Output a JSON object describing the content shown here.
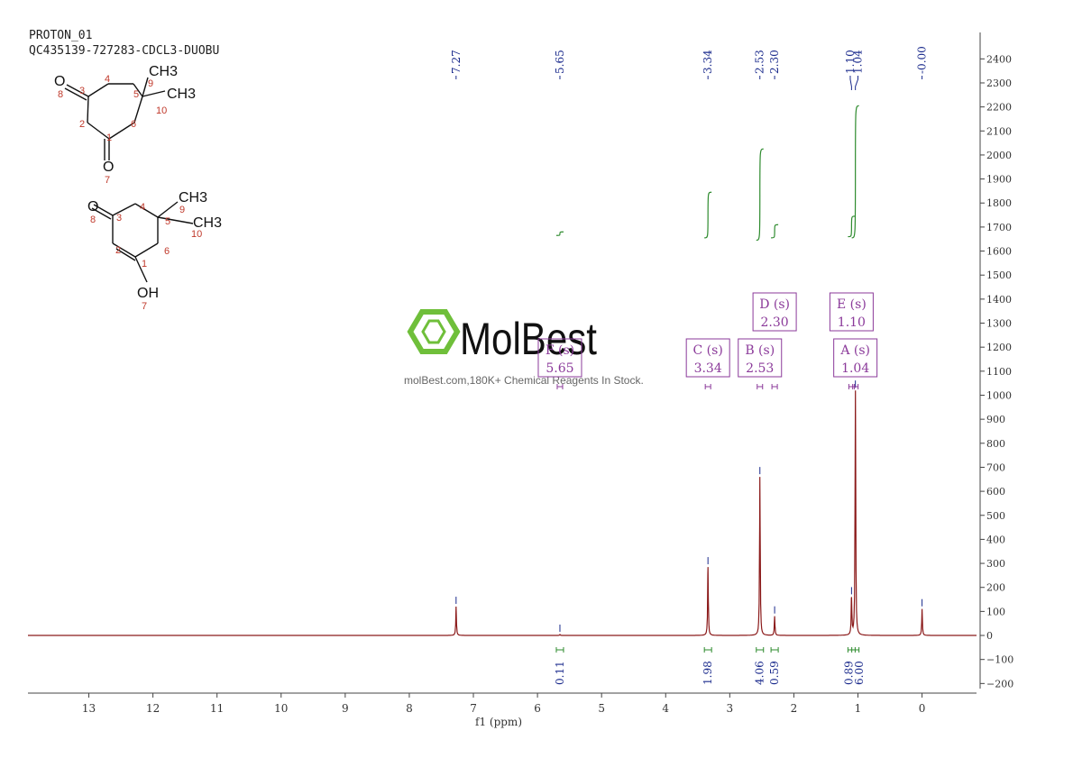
{
  "header": {
    "experiment": "PROTON_01",
    "sample": "QC435139-727283-CDCL3-DUOBU"
  },
  "colors": {
    "spectrum": "#8b1a1a",
    "peak_label": "#1a2a8c",
    "integral": "#2e8b2e",
    "multiplet_box": "#8b3a9a",
    "watermark": "#6fbf3a",
    "axis": "#444444"
  },
  "watermark": {
    "brand": "MolBest",
    "tagline": "molBest.com,180K+ Chemical Reagents In Stock."
  },
  "structures": [
    {
      "atoms": [
        {
          "label": "O",
          "number": "8"
        },
        {
          "label": "3"
        },
        {
          "label": "4"
        },
        {
          "label": "5"
        },
        {
          "label": "9"
        },
        {
          "label": "10"
        },
        {
          "label": "2"
        },
        {
          "label": "6"
        },
        {
          "label": "1"
        },
        {
          "label": "O",
          "number": "7"
        }
      ],
      "groups": [
        "CH3",
        "CH3"
      ]
    },
    {
      "atoms": [
        {
          "label": "O",
          "number": "8"
        },
        {
          "label": "3"
        },
        {
          "label": "4"
        },
        {
          "label": "5"
        },
        {
          "label": "9"
        },
        {
          "label": "10"
        },
        {
          "label": "2"
        },
        {
          "label": "6"
        },
        {
          "label": "1"
        },
        {
          "label": "OH",
          "number": "7"
        }
      ],
      "groups": [
        "CH3",
        "CH3"
      ]
    }
  ],
  "chart_data": {
    "type": "line",
    "xlabel": "f1 (ppm)",
    "xlim": [
      13.95,
      -0.85
    ],
    "ylim": [
      -240,
      2510
    ],
    "x_ticks": [
      13,
      12,
      11,
      10,
      9,
      8,
      7,
      6,
      5,
      4,
      3,
      2,
      1,
      0
    ],
    "y_ticks": [
      -200,
      -100,
      0,
      100,
      200,
      300,
      400,
      500,
      600,
      700,
      800,
      900,
      1000,
      1100,
      1200,
      1300,
      1400,
      1500,
      1600,
      1700,
      1800,
      1900,
      2000,
      2100,
      2200,
      2300,
      2400
    ],
    "peak_labels": [
      "7.27",
      "5.65",
      "3.34",
      "2.53",
      "2.30",
      "1.10",
      "1.04",
      "-0.00"
    ],
    "peaks": [
      {
        "ppm": 7.27,
        "height": 120
      },
      {
        "ppm": 5.65,
        "height": 4
      },
      {
        "ppm": 3.34,
        "height": 285
      },
      {
        "ppm": 2.53,
        "height": 660
      },
      {
        "ppm": 2.3,
        "height": 80
      },
      {
        "ppm": 1.1,
        "height": 160
      },
      {
        "ppm": 1.04,
        "height": 1020
      },
      {
        "ppm": 0.0,
        "height": 110
      }
    ],
    "multiplets": [
      {
        "id": "A",
        "type": "s",
        "shift": "1.04",
        "text": "A (s)",
        "ppm": 1.04
      },
      {
        "id": "B",
        "type": "s",
        "shift": "2.53",
        "text": "B (s)",
        "ppm": 2.53
      },
      {
        "id": "C",
        "type": "s",
        "shift": "3.34",
        "text": "C (s)",
        "ppm": 3.34
      },
      {
        "id": "D",
        "type": "s",
        "shift": "2.30",
        "text": "D (s)",
        "ppm": 2.3
      },
      {
        "id": "E",
        "type": "s",
        "shift": "1.10",
        "text": "E (s)",
        "ppm": 1.1
      },
      {
        "id": "F",
        "type": "s",
        "shift": "5.65",
        "text": "F (s)",
        "ppm": 5.65
      }
    ],
    "integrals": [
      {
        "ppm": 5.65,
        "value": "0.11",
        "rise": 15,
        "base": 1665
      },
      {
        "ppm": 3.34,
        "value": "1.98",
        "rise": 190,
        "base": 1655
      },
      {
        "ppm": 2.53,
        "value": "4.06",
        "rise": 380,
        "base": 1645
      },
      {
        "ppm": 2.3,
        "value": "0.59",
        "rise": 55,
        "base": 1655
      },
      {
        "ppm": 1.1,
        "value": "0.89",
        "rise": 85,
        "base": 1660
      },
      {
        "ppm": 1.04,
        "value": "6.00",
        "rise": 550,
        "base": 1655
      }
    ]
  }
}
